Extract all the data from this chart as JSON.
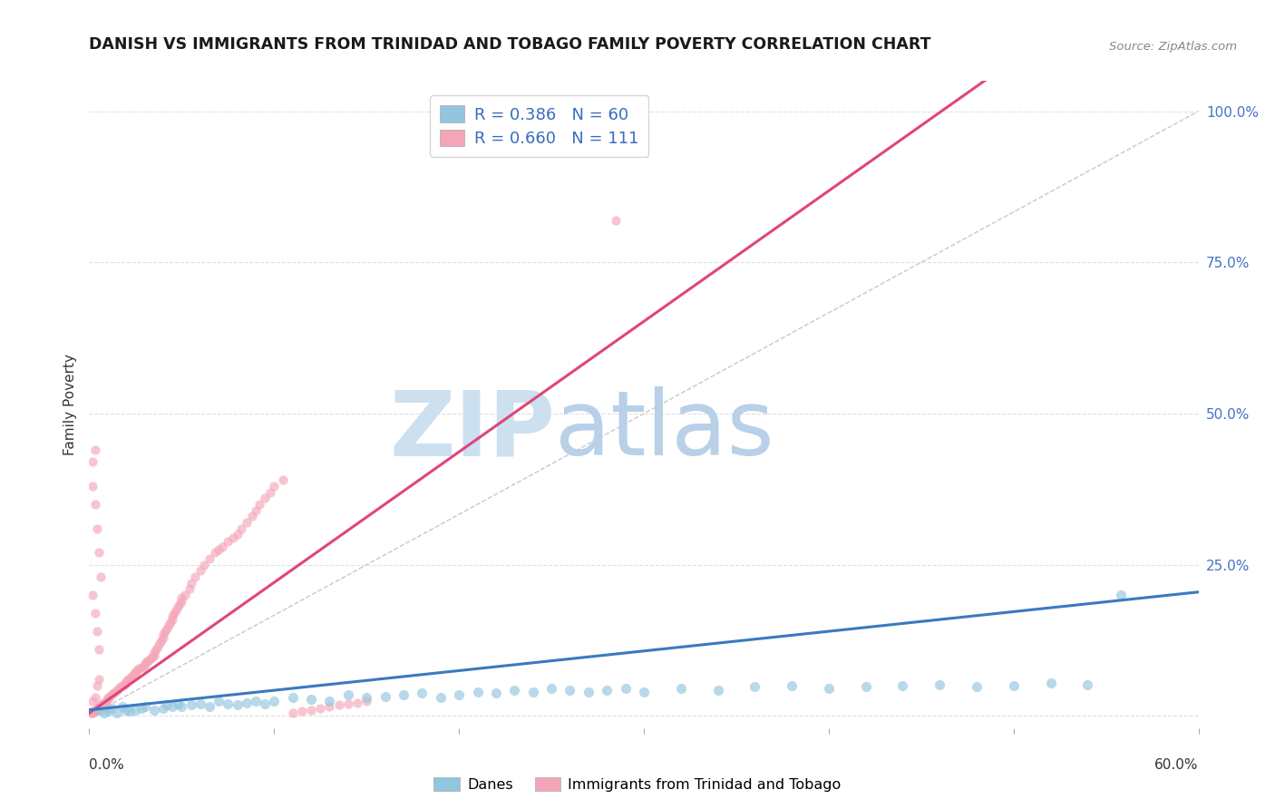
{
  "title": "DANISH VS IMMIGRANTS FROM TRINIDAD AND TOBAGO FAMILY POVERTY CORRELATION CHART",
  "source": "Source: ZipAtlas.com",
  "ylabel": "Family Poverty",
  "xlim": [
    0.0,
    0.6
  ],
  "ylim": [
    -0.02,
    1.05
  ],
  "legend_label_blue": "Danes",
  "legend_label_pink": "Immigrants from Trinidad and Tobago",
  "blue_color": "#92c5de",
  "pink_color": "#f4a6b8",
  "blue_line_color": "#3a7abf",
  "pink_line_color": "#e0457b",
  "diag_line_color": "#c8c8c8",
  "legend_text_color": "#3a6cbf",
  "right_tick_color": "#4472c4",
  "background_color": "#ffffff",
  "grid_color": "#e0e0e0",
  "watermark_zip_color": "#cce0f0",
  "watermark_atlas_color": "#b8d0e8",
  "title_color": "#1a1a1a",
  "source_color": "#888888",
  "ylabel_color": "#333333",
  "blue_scatter_x": [
    0.005,
    0.008,
    0.01,
    0.012,
    0.015,
    0.018,
    0.02,
    0.022,
    0.025,
    0.028,
    0.03,
    0.035,
    0.04,
    0.042,
    0.045,
    0.048,
    0.05,
    0.055,
    0.06,
    0.065,
    0.07,
    0.075,
    0.08,
    0.085,
    0.09,
    0.095,
    0.1,
    0.11,
    0.12,
    0.13,
    0.14,
    0.15,
    0.16,
    0.17,
    0.18,
    0.19,
    0.2,
    0.21,
    0.22,
    0.23,
    0.24,
    0.25,
    0.26,
    0.27,
    0.28,
    0.29,
    0.3,
    0.32,
    0.34,
    0.36,
    0.38,
    0.4,
    0.42,
    0.44,
    0.46,
    0.48,
    0.5,
    0.52,
    0.54,
    0.558
  ],
  "blue_scatter_y": [
    0.01,
    0.005,
    0.008,
    0.012,
    0.005,
    0.015,
    0.01,
    0.008,
    0.01,
    0.012,
    0.015,
    0.01,
    0.012,
    0.018,
    0.015,
    0.02,
    0.015,
    0.018,
    0.02,
    0.015,
    0.025,
    0.02,
    0.018,
    0.022,
    0.025,
    0.02,
    0.025,
    0.03,
    0.028,
    0.025,
    0.035,
    0.03,
    0.032,
    0.035,
    0.038,
    0.03,
    0.035,
    0.04,
    0.038,
    0.042,
    0.04,
    0.045,
    0.042,
    0.04,
    0.042,
    0.045,
    0.04,
    0.045,
    0.042,
    0.048,
    0.05,
    0.045,
    0.048,
    0.05,
    0.052,
    0.048,
    0.05,
    0.055,
    0.052,
    0.2
  ],
  "pink_scatter_x": [
    0.001,
    0.002,
    0.003,
    0.004,
    0.005,
    0.006,
    0.007,
    0.008,
    0.009,
    0.01,
    0.01,
    0.011,
    0.012,
    0.013,
    0.014,
    0.015,
    0.016,
    0.017,
    0.018,
    0.019,
    0.02,
    0.02,
    0.021,
    0.022,
    0.023,
    0.024,
    0.025,
    0.025,
    0.026,
    0.027,
    0.028,
    0.029,
    0.03,
    0.03,
    0.031,
    0.032,
    0.033,
    0.034,
    0.035,
    0.035,
    0.036,
    0.037,
    0.038,
    0.039,
    0.04,
    0.04,
    0.041,
    0.042,
    0.043,
    0.044,
    0.045,
    0.045,
    0.046,
    0.047,
    0.048,
    0.049,
    0.05,
    0.05,
    0.052,
    0.054,
    0.055,
    0.057,
    0.06,
    0.062,
    0.065,
    0.068,
    0.07,
    0.072,
    0.075,
    0.078,
    0.08,
    0.082,
    0.085,
    0.088,
    0.09,
    0.092,
    0.095,
    0.098,
    0.1,
    0.105,
    0.11,
    0.115,
    0.12,
    0.125,
    0.13,
    0.135,
    0.14,
    0.145,
    0.15,
    0.002,
    0.003,
    0.004,
    0.005,
    0.006,
    0.002,
    0.003,
    0.004,
    0.005,
    0.002,
    0.003,
    0.004,
    0.005,
    0.002,
    0.003,
    0.004,
    0.005,
    0.002,
    0.003,
    0.002,
    0.003,
    0.285
  ],
  "pink_scatter_y": [
    0.005,
    0.008,
    0.01,
    0.012,
    0.015,
    0.018,
    0.02,
    0.022,
    0.025,
    0.028,
    0.03,
    0.032,
    0.035,
    0.038,
    0.04,
    0.042,
    0.045,
    0.048,
    0.05,
    0.052,
    0.055,
    0.058,
    0.06,
    0.062,
    0.065,
    0.068,
    0.07,
    0.072,
    0.075,
    0.078,
    0.08,
    0.082,
    0.085,
    0.088,
    0.09,
    0.092,
    0.095,
    0.098,
    0.1,
    0.105,
    0.11,
    0.115,
    0.12,
    0.125,
    0.13,
    0.135,
    0.14,
    0.145,
    0.15,
    0.155,
    0.16,
    0.165,
    0.17,
    0.175,
    0.18,
    0.185,
    0.19,
    0.195,
    0.2,
    0.21,
    0.22,
    0.23,
    0.24,
    0.25,
    0.26,
    0.27,
    0.275,
    0.28,
    0.288,
    0.295,
    0.3,
    0.31,
    0.32,
    0.33,
    0.34,
    0.35,
    0.36,
    0.37,
    0.38,
    0.39,
    0.005,
    0.008,
    0.01,
    0.012,
    0.015,
    0.018,
    0.02,
    0.022,
    0.025,
    0.38,
    0.35,
    0.31,
    0.27,
    0.23,
    0.2,
    0.17,
    0.14,
    0.11,
    0.42,
    0.44,
    0.05,
    0.06,
    0.005,
    0.008,
    0.01,
    0.012,
    0.005,
    0.008,
    0.025,
    0.03,
    0.82
  ]
}
